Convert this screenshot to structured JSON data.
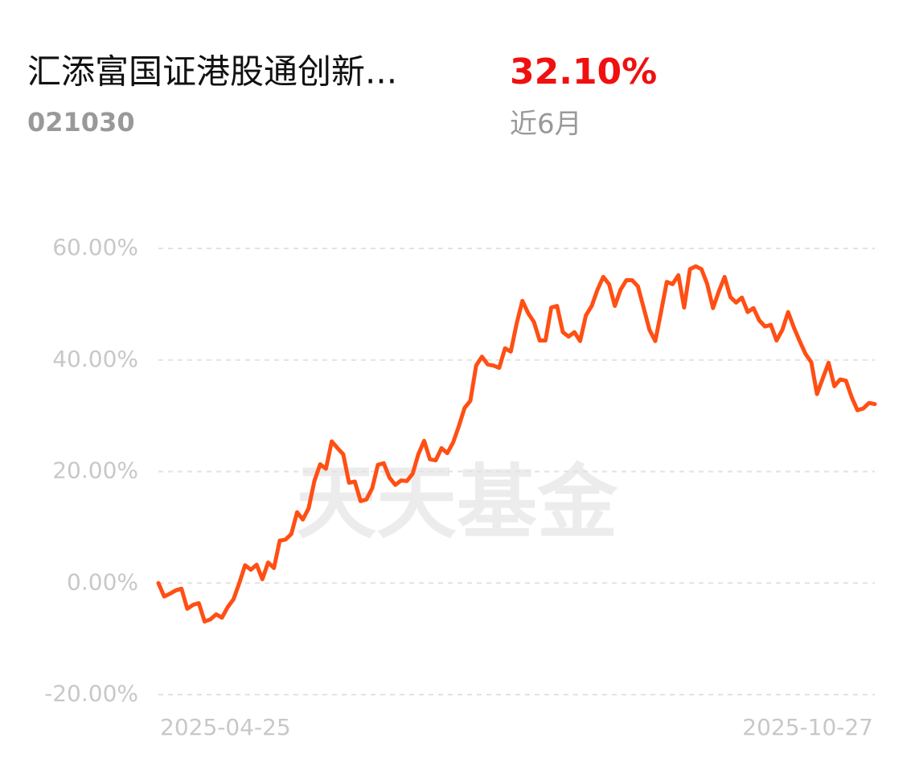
{
  "header": {
    "title": "汇添富国证港股通创新...",
    "code": "021030",
    "return": "32.10%",
    "period": "近6月"
  },
  "chart_data": {
    "type": "line",
    "watermark": "天天基金",
    "categories": [
      "2025-04-25",
      null,
      null,
      null,
      null,
      null,
      null,
      null,
      null,
      null,
      null,
      null,
      null,
      null,
      null,
      null,
      null,
      null,
      null,
      null,
      null,
      null,
      null,
      null,
      null,
      null,
      null,
      null,
      null,
      null,
      null,
      null,
      null,
      null,
      null,
      null,
      null,
      null,
      null,
      null,
      null,
      null,
      null,
      null,
      null,
      null,
      null,
      null,
      null,
      null,
      null,
      null,
      null,
      null,
      null,
      null,
      null,
      null,
      null,
      null,
      null,
      null,
      null,
      null,
      null,
      null,
      null,
      null,
      null,
      null,
      null,
      null,
      null,
      null,
      null,
      null,
      null,
      null,
      null,
      null,
      null,
      null,
      null,
      null,
      null,
      null,
      null,
      null,
      null,
      null,
      null,
      null,
      null,
      null,
      null,
      null,
      null,
      null,
      null,
      null,
      null,
      null,
      null,
      null,
      null,
      null,
      null,
      null,
      null,
      null,
      null,
      null,
      null,
      null,
      null,
      null,
      null,
      null,
      null,
      null,
      null,
      null,
      null,
      null,
      "2025-10-27"
    ],
    "series": [
      {
        "color": "#ff4f14",
        "values": [
          0,
          -2.4,
          -1.9,
          -1.3,
          -1.0,
          -4.6,
          -3.9,
          -3.6,
          -6.9,
          -6.5,
          -5.6,
          -6.2,
          -4.3,
          -2.9,
          0,
          3.2,
          2.4,
          3.3,
          0.7,
          3.7,
          2.7,
          7.6,
          7.8,
          8.8,
          12.7,
          11.4,
          13.4,
          18.3,
          21.3,
          20.5,
          25.4,
          24.2,
          23.1,
          18.0,
          18.2,
          14.7,
          15.0,
          17.0,
          21.2,
          21.5,
          18.9,
          17.6,
          18.4,
          18.3,
          19.6,
          23.1,
          25.5,
          22.2,
          22.0,
          24.2,
          23.3,
          25.2,
          28.1,
          31.4,
          32.7,
          39.0,
          40.6,
          39.2,
          39.0,
          38.6,
          42.1,
          41.5,
          46.5,
          50.6,
          48.4,
          46.8,
          43.5,
          43.5,
          49.4,
          49.7,
          45.0,
          44.2,
          45.0,
          43.4,
          48.0,
          49.7,
          52.6,
          54.9,
          53.6,
          49.7,
          52.6,
          54.3,
          54.3,
          53.2,
          49.3,
          45.4,
          43.4,
          48.6,
          54.0,
          53.6,
          55.2,
          49.4,
          56.3,
          56.8,
          56.3,
          53.6,
          49.3,
          52.3,
          54.9,
          51.3,
          50.3,
          51.2,
          48.6,
          49.3,
          47.1,
          46.0,
          46.3,
          43.5,
          45.4,
          48.6,
          45.8,
          43.4,
          41.1,
          39.6,
          33.9,
          36.7,
          39.5,
          35.3,
          36.5,
          36.3,
          33.3,
          31.0,
          31.3,
          32.3,
          32.1
        ]
      }
    ],
    "ylim": [
      -20,
      60
    ],
    "yticks": [
      {
        "value": -20,
        "label": "-20.00%"
      },
      {
        "value": 0,
        "label": "0.00%"
      },
      {
        "value": 20,
        "label": "20.00%"
      },
      {
        "value": 40,
        "label": "40.00%"
      },
      {
        "value": 60,
        "label": "60.00%"
      }
    ],
    "grid": true
  }
}
